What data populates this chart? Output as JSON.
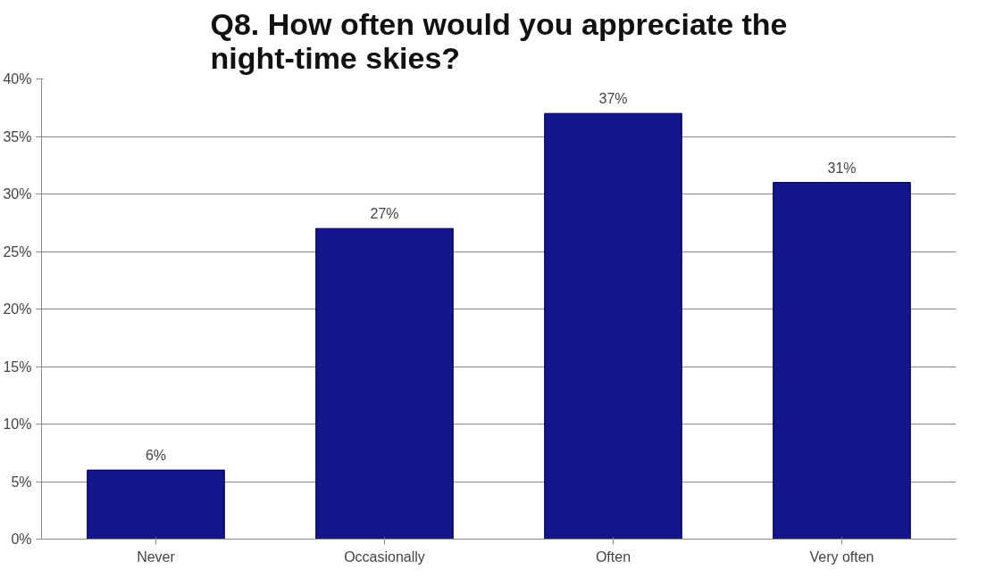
{
  "chart_data": {
    "type": "bar",
    "title": "Q8. How often would you appreciate the night-time skies?",
    "categories": [
      "Never",
      "Occasionally",
      "Often",
      "Very often"
    ],
    "values": [
      6,
      27,
      37,
      31
    ],
    "value_labels": [
      "6%",
      "27%",
      "37%",
      "31%"
    ],
    "color": "#14148c",
    "ylim": [
      0,
      40
    ],
    "yticks": [
      {
        "value": 0,
        "label": "0%"
      },
      {
        "value": 5,
        "label": "5%"
      },
      {
        "value": 10,
        "label": "10%"
      },
      {
        "value": 15,
        "label": "15%"
      },
      {
        "value": 20,
        "label": "20%"
      },
      {
        "value": 25,
        "label": "25%"
      },
      {
        "value": 30,
        "label": "30%"
      },
      {
        "value": 35,
        "label": "35%"
      },
      {
        "value": 40,
        "label": "40%"
      }
    ],
    "grid": "y"
  }
}
